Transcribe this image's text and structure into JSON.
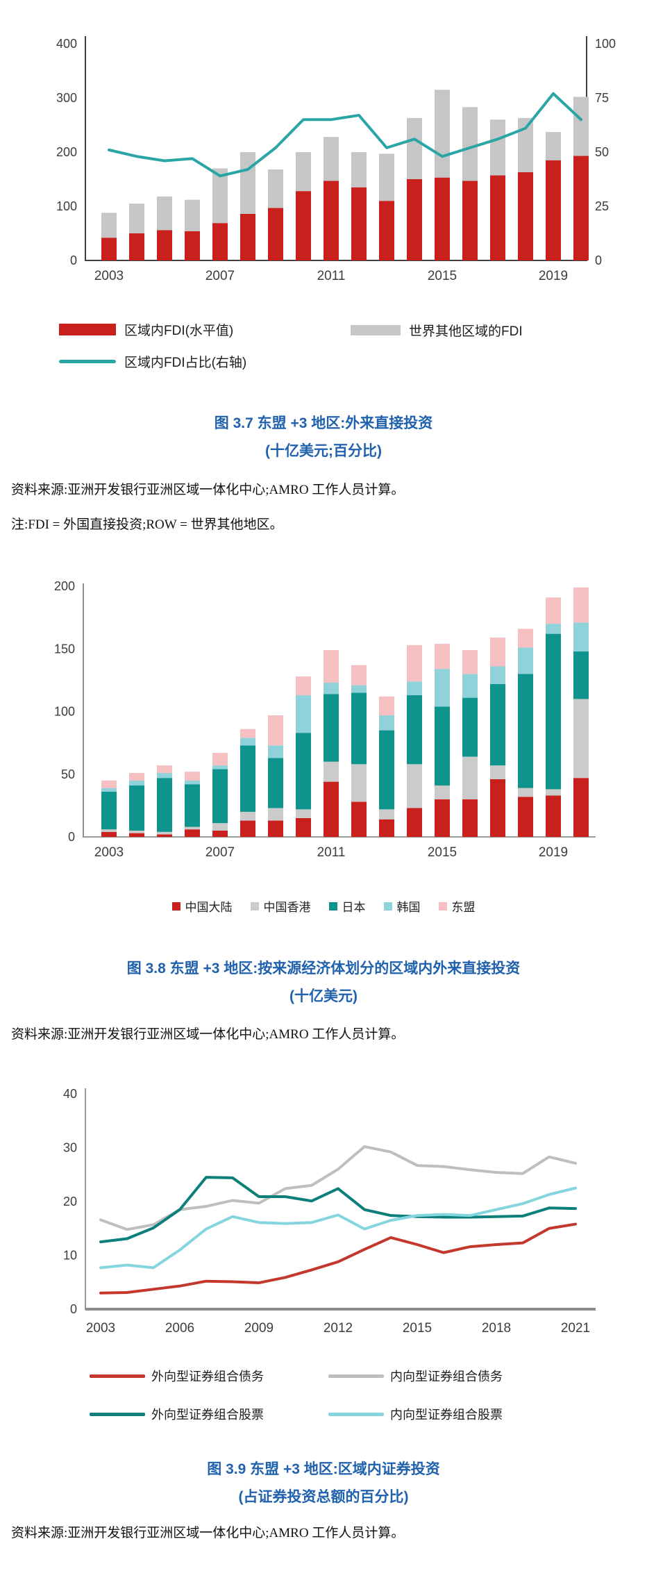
{
  "figure37": {
    "title_line1": "图 3.7 东盟 +3 地区:外来直接投资",
    "title_line2": "(十亿美元;百分比)",
    "source": "资料来源:亚洲开发银行亚洲区域一体化中心;AMRO 工作人员计算。",
    "note": "注:FDI = 外国直接投资;ROW = 世界其他地区。"
  },
  "figure38": {
    "title_line1": "图 3.8 东盟 +3 地区:按来源经济体划分的区域内外来直接投资",
    "title_line2": "(十亿美元)",
    "source": "资料来源:亚洲开发银行亚洲区域一体化中心;AMRO 工作人员计算。"
  },
  "figure39": {
    "title_line1": "图 3.9 东盟 +3 地区:区域内证券投资",
    "title_line2": "(占证券投资总额的百分比)",
    "source": "资料来源:亚洲开发银行亚洲区域一体化中心;AMRO 工作人员计算。"
  },
  "colors": {
    "title_blue": "#2061AE",
    "axis_text": "#3C3C3C",
    "axis_line_dark": "#404040",
    "axis_line_gray": "#8C8C8C"
  },
  "chart_data": [
    {
      "type": "bar",
      "stacked": true,
      "title": "图 3.7 东盟 +3 地区:外来直接投资(十亿美元;百分比)",
      "categories": [
        "2003",
        "2004",
        "2005",
        "2006",
        "2007",
        "2008",
        "2009",
        "2010",
        "2011",
        "2012",
        "2013",
        "2014",
        "2015",
        "2016",
        "2017",
        "2018",
        "2019",
        "2020"
      ],
      "x_ticks": [
        "2003",
        "2007",
        "2011",
        "2015",
        "2019"
      ],
      "x_tick_indices": [
        0,
        4,
        8,
        12,
        16
      ],
      "left_axis": {
        "ticks": [
          0,
          100,
          200,
          300,
          400
        ],
        "max": 400
      },
      "right_axis": {
        "ticks": [
          0,
          25,
          50,
          75,
          100
        ],
        "max": 100
      },
      "series": [
        {
          "name": "区域内FDI(水平值)",
          "type": "bar",
          "color": "#C9201D",
          "values": [
            42,
            50,
            56,
            54,
            69,
            86,
            97,
            128,
            147,
            135,
            110,
            150,
            153,
            147,
            157,
            163,
            185,
            193
          ]
        },
        {
          "name": "世界其他区域的FDI",
          "type": "bar",
          "color": "#C6C6C6",
          "values": [
            46,
            55,
            62,
            58,
            101,
            114,
            71,
            72,
            81,
            65,
            87,
            113,
            162,
            136,
            103,
            100,
            52,
            109
          ]
        },
        {
          "name": "区域内FDI占比(右轴)",
          "type": "line",
          "axis": "right",
          "color": "#29A5A5",
          "values": [
            51,
            48,
            46,
            47,
            39,
            42,
            52,
            65,
            65,
            67,
            52,
            56,
            48,
            52,
            56,
            61,
            77,
            65
          ]
        }
      ]
    },
    {
      "type": "bar",
      "stacked": true,
      "title": "图 3.8 东盟 +3 地区:按来源经济体划分的区域内外来直接投资(十亿美元)",
      "categories": [
        "2003",
        "2004",
        "2005",
        "2006",
        "2007",
        "2008",
        "2009",
        "2010",
        "2011",
        "2012",
        "2013",
        "2014",
        "2015",
        "2016",
        "2017",
        "2018",
        "2019",
        "2020"
      ],
      "x_ticks": [
        "2003",
        "2007",
        "2011",
        "2015",
        "2019"
      ],
      "x_tick_indices": [
        0,
        4,
        8,
        12,
        16
      ],
      "left_axis": {
        "ticks": [
          0,
          50,
          100,
          150,
          200
        ],
        "max": 200
      },
      "series": [
        {
          "name": "中国大陆",
          "type": "bar",
          "color": "#C9201D",
          "values": [
            4,
            3,
            2,
            6,
            5,
            13,
            13,
            15,
            44,
            28,
            14,
            23,
            30,
            30,
            46,
            32,
            33,
            47
          ]
        },
        {
          "name": "中国香港",
          "type": "bar",
          "color": "#CBCBCB",
          "values": [
            2,
            2,
            2,
            2,
            6,
            7,
            10,
            7,
            16,
            30,
            8,
            35,
            11,
            34,
            11,
            7,
            5,
            63
          ]
        },
        {
          "name": "日本",
          "type": "bar",
          "color": "#0F938D",
          "values": [
            30,
            36,
            43,
            34,
            43,
            53,
            40,
            61,
            54,
            57,
            63,
            55,
            63,
            47,
            65,
            91,
            124,
            38
          ]
        },
        {
          "name": "韩国",
          "type": "bar",
          "color": "#8FD2DA",
          "values": [
            3,
            4,
            4,
            3,
            3,
            6,
            10,
            30,
            9,
            6,
            12,
            11,
            30,
            19,
            14,
            21,
            8,
            23
          ]
        },
        {
          "name": "东盟",
          "type": "bar",
          "color": "#F6BFC1",
          "values": [
            6,
            6,
            6,
            7,
            10,
            7,
            24,
            15,
            26,
            16,
            15,
            29,
            20,
            19,
            23,
            15,
            21,
            28
          ]
        }
      ]
    },
    {
      "type": "line",
      "title": "图 3.9 东盟 +3 地区:区域内证券投资(占证券投资总额的百分比)",
      "categories": [
        "2003",
        "2004",
        "2005",
        "2006",
        "2007",
        "2008",
        "2009",
        "2010",
        "2011",
        "2012",
        "2013",
        "2014",
        "2015",
        "2016",
        "2017",
        "2018",
        "2019",
        "2020",
        "2021"
      ],
      "x_ticks": [
        "2003",
        "2006",
        "2009",
        "2012",
        "2015",
        "2018",
        "2021"
      ],
      "x_tick_indices": [
        0,
        3,
        6,
        9,
        12,
        15,
        18
      ],
      "left_axis": {
        "ticks": [
          0,
          10,
          20,
          30,
          40
        ],
        "max": 40
      },
      "series": [
        {
          "name": "外向型证券组合债务",
          "type": "line",
          "color": "#C4372C",
          "values": [
            3.0,
            3.1,
            3.7,
            4.3,
            5.2,
            5.1,
            4.9,
            5.9,
            7.3,
            8.8,
            11.1,
            13.3,
            12.0,
            10.5,
            11.6,
            12.0,
            12.3,
            15.0,
            15.8
          ]
        },
        {
          "name": "内向型证券组合债务",
          "type": "line",
          "color": "#BEBEBE",
          "values": [
            16.6,
            14.8,
            15.7,
            18.5,
            19.1,
            20.2,
            19.7,
            22.4,
            23.0,
            26.0,
            30.2,
            29.2,
            26.7,
            26.5,
            25.9,
            25.4,
            25.2,
            28.3,
            27.1
          ]
        },
        {
          "name": "外向型证券组合股票",
          "type": "line",
          "color": "#0C7F7A",
          "values": [
            12.5,
            13.1,
            15.1,
            18.5,
            24.5,
            24.4,
            20.9,
            20.9,
            20.1,
            22.4,
            18.5,
            17.4,
            17.2,
            17.1,
            17.1,
            17.2,
            17.3,
            18.8,
            18.7
          ]
        },
        {
          "name": "内向型证券组合股票",
          "type": "line",
          "color": "#85D5DF",
          "values": [
            7.7,
            8.2,
            7.7,
            11.0,
            14.9,
            17.2,
            16.1,
            15.9,
            16.1,
            17.5,
            14.9,
            16.5,
            17.4,
            17.6,
            17.4,
            18.5,
            19.6,
            21.3,
            22.5
          ]
        }
      ]
    }
  ]
}
